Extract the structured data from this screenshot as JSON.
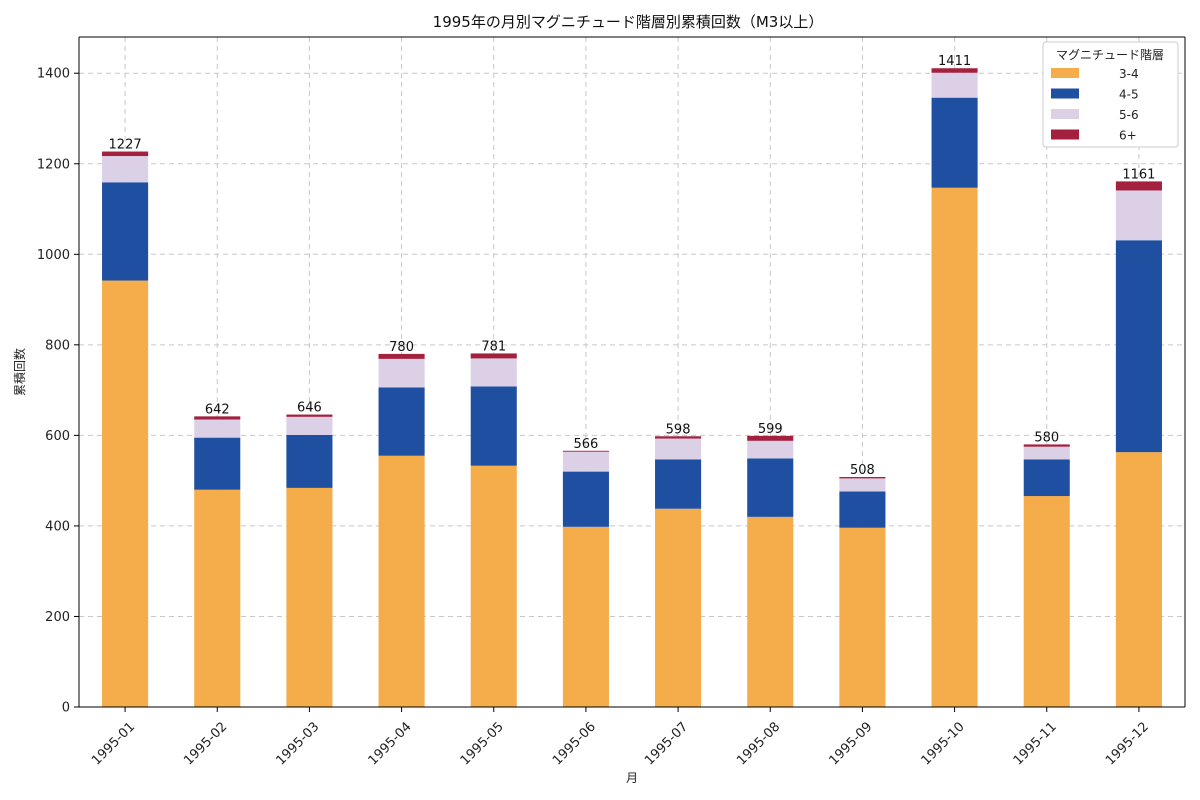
{
  "chart_data": {
    "type": "bar",
    "stacked": true,
    "title": "1995年の月別マグニチュード階層別累積回数（M3以上）",
    "xlabel": "月",
    "ylabel": "累積回数",
    "ylim": [
      0,
      1480
    ],
    "yticks": [
      0,
      200,
      400,
      600,
      800,
      1000,
      1200,
      1400
    ],
    "grid": true,
    "categories": [
      "1995-01",
      "1995-02",
      "1995-03",
      "1995-04",
      "1995-05",
      "1995-06",
      "1995-07",
      "1995-08",
      "1995-09",
      "1995-10",
      "1995-11",
      "1995-12"
    ],
    "series": [
      {
        "name": "3-4",
        "color": "#f5ac4a",
        "values": [
          942,
          480,
          484,
          555,
          533,
          398,
          438,
          420,
          396,
          1147,
          466,
          563
        ]
      },
      {
        "name": "4-5",
        "color": "#1f4fa1",
        "values": [
          217,
          115,
          117,
          151,
          175,
          122,
          109,
          129,
          80,
          199,
          81,
          468
        ]
      },
      {
        "name": "5-6",
        "color": "#dcd0e7",
        "values": [
          58,
          40,
          40,
          63,
          62,
          44,
          46,
          39,
          29,
          55,
          28,
          110
        ]
      },
      {
        "name": "6+",
        "color": "#a3213f",
        "values": [
          10,
          7,
          5,
          11,
          11,
          2,
          5,
          11,
          3,
          10,
          5,
          20
        ]
      }
    ],
    "totals": [
      1227,
      642,
      646,
      780,
      781,
      566,
      598,
      599,
      508,
      1411,
      580,
      1161
    ],
    "legend": {
      "title": "マグニチュード階層",
      "position": "top-right"
    }
  }
}
